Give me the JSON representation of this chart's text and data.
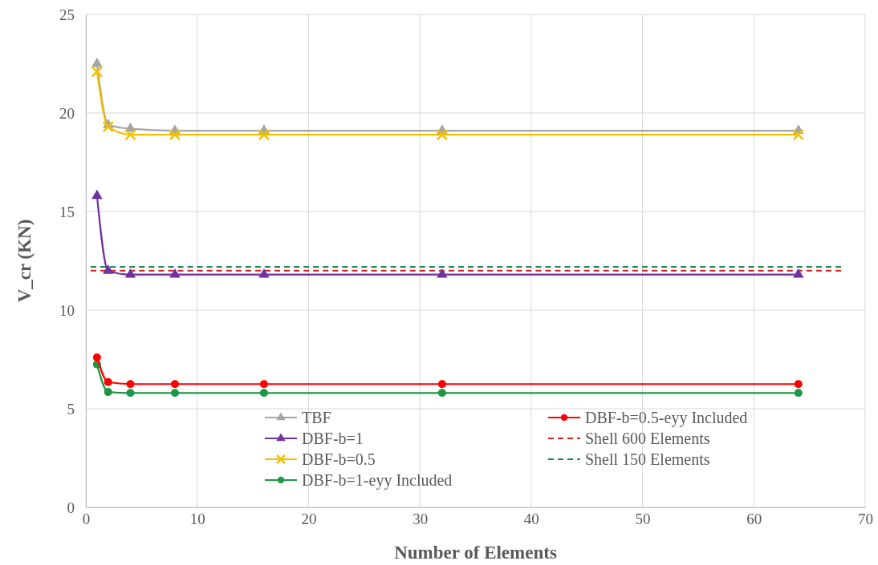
{
  "chart_data": {
    "type": "line",
    "xlabel": "Number of Elements",
    "ylabel": "V_cr (KN)",
    "x": [
      1,
      2,
      4,
      8,
      16,
      32,
      64
    ],
    "xlim": [
      0,
      70
    ],
    "xticks": [
      0,
      10,
      20,
      30,
      40,
      50,
      60,
      70
    ],
    "ylim": [
      0,
      25
    ],
    "yticks": [
      0,
      5,
      10,
      15,
      20,
      25
    ],
    "grid": true,
    "legend": "bottom",
    "series": [
      {
        "name": "TBF",
        "color": "#a5a5a5",
        "marker": "triangle",
        "values": [
          22.5,
          19.4,
          19.2,
          19.1,
          19.1,
          19.1,
          19.1
        ]
      },
      {
        "name": "DBF-b=1",
        "color": "#7030a0",
        "marker": "triangle",
        "values": [
          15.8,
          12.0,
          11.8,
          11.8,
          11.8,
          11.8,
          11.8
        ]
      },
      {
        "name": "DBF-b=0.5",
        "color": "#f5c000",
        "marker": "cross",
        "values": [
          22.1,
          19.3,
          18.9,
          18.9,
          18.9,
          18.9,
          18.9
        ]
      },
      {
        "name": "DBF-b=1-eyy Included",
        "color": "#1e9646",
        "marker": "circle",
        "values": [
          7.25,
          5.85,
          5.8,
          5.8,
          5.8,
          5.8,
          5.8
        ]
      },
      {
        "name": "DBF-b=0.5-eyy Included",
        "color": "#ff0000",
        "marker": "circle",
        "values": [
          7.6,
          6.35,
          6.25,
          6.25,
          6.25,
          6.25,
          6.25
        ]
      }
    ],
    "ref_lines": [
      {
        "axis": "y",
        "value": 12.0,
        "label": "Shell 600 Elements",
        "color": "#e02020",
        "line_style": "dashed"
      },
      {
        "axis": "y",
        "value": 12.2,
        "label": "Shell 150 Elements",
        "color": "#1e8a5a",
        "line_style": "dashed"
      }
    ]
  }
}
